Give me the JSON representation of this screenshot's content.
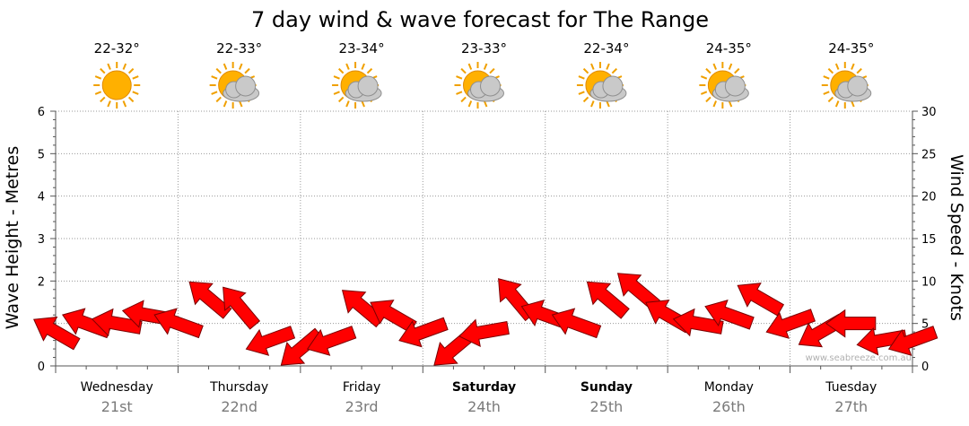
{
  "title": "7 day wind & wave forecast for The Range",
  "watermark": "www.seabreeze.com.au",
  "y_left_label": "Wave Height - Metres",
  "y_right_label": "Wind Speed - Knots",
  "days": [
    {
      "name": "Wednesday",
      "date": "21st",
      "temp": "22-32°",
      "icon": "sunny-icon",
      "bold": false
    },
    {
      "name": "Thursday",
      "date": "22nd",
      "temp": "22-33°",
      "icon": "partly-cloudy-icon",
      "bold": false
    },
    {
      "name": "Friday",
      "date": "23rd",
      "temp": "23-34°",
      "icon": "partly-cloudy-icon",
      "bold": false
    },
    {
      "name": "Saturday",
      "date": "24th",
      "temp": "23-33°",
      "icon": "partly-cloudy-icon",
      "bold": true
    },
    {
      "name": "Sunday",
      "date": "25th",
      "temp": "22-34°",
      "icon": "partly-cloudy-icon",
      "bold": true
    },
    {
      "name": "Monday",
      "date": "26th",
      "temp": "24-35°",
      "icon": "partly-cloudy-icon",
      "bold": false
    },
    {
      "name": "Tuesday",
      "date": "27th",
      "temp": "24-35°",
      "icon": "partly-cloudy-icon",
      "bold": false
    }
  ],
  "colors": {
    "arrow": "#ff0000",
    "arrow_stroke": "#7a0000",
    "grid": "#9a9a9a",
    "sun": "#ffb000"
  },
  "chart_data": {
    "type": "line",
    "title": "7 day wind & wave forecast for The Range",
    "ylabel_left": "Wave Height - Metres",
    "ylabel_right": "Wind Speed - Knots",
    "ylim_left": [
      0,
      6
    ],
    "ylim_right": [
      0,
      30
    ],
    "y_left_ticks": [
      "0",
      "1",
      "2",
      "3",
      "4",
      "5",
      "6"
    ],
    "y_right_ticks": [
      "0",
      "5",
      "10",
      "15",
      "20",
      "25",
      "30"
    ],
    "grid": true,
    "x_unit": "hour from Wednesday 00:00",
    "series": [
      {
        "name": "Wind Speed - Knots",
        "marker": "direction arrows",
        "x": [
          0,
          6,
          12,
          18,
          24,
          30,
          36,
          42,
          48,
          54,
          60,
          66,
          72,
          78,
          84,
          90,
          96,
          102,
          108,
          114,
          120,
          126,
          132,
          138,
          144,
          150,
          156,
          162,
          168
        ],
        "values": [
          4,
          5,
          5,
          6,
          5,
          8,
          7,
          3,
          2,
          3,
          7,
          6,
          4,
          2,
          4,
          8,
          6,
          5,
          8,
          9,
          6,
          5,
          6,
          8,
          5,
          4,
          5,
          3,
          3
        ],
        "direction_deg": [
          210,
          200,
          190,
          190,
          200,
          220,
          230,
          160,
          140,
          160,
          220,
          210,
          160,
          140,
          170,
          230,
          200,
          200,
          220,
          220,
          210,
          190,
          200,
          210,
          160,
          150,
          180,
          170,
          160
        ]
      }
    ]
  }
}
